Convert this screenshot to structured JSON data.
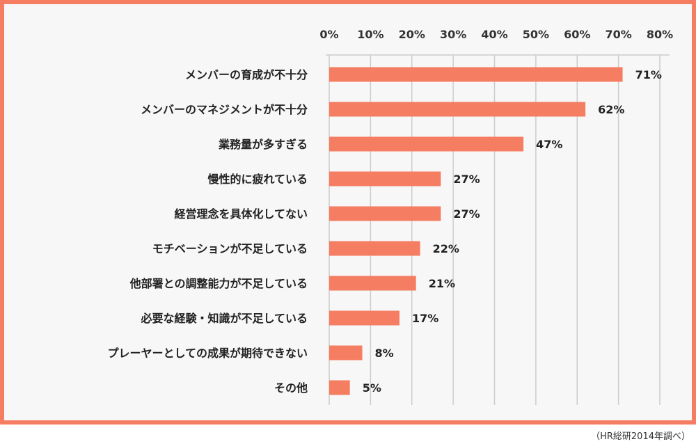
{
  "footnote": "（HR総研2014年調べ）",
  "colors": {
    "bar": "#f57d62",
    "frame": "#f57d62",
    "background": "#f7f7f7",
    "grid": "#cccccc"
  },
  "chart_data": {
    "type": "bar",
    "orientation": "horizontal",
    "grid": true,
    "xlim": [
      0,
      80
    ],
    "xticks": [
      0,
      10,
      20,
      30,
      40,
      50,
      60,
      70,
      80
    ],
    "xtick_labels": [
      "0%",
      "10%",
      "20%",
      "30%",
      "40%",
      "50%",
      "60%",
      "70%",
      "80%"
    ],
    "categories": [
      "メンバーの育成が不十分",
      "メンバーのマネジメントが不十分",
      "業務量が多すぎる",
      "慢性的に疲れている",
      "経営理念を具体化してない",
      "モチベーションが不足している",
      "他部署との調整能力が不足している",
      "必要な経験・知識が不足している",
      "プレーヤーとしての成果が期待できない",
      "その他"
    ],
    "values": [
      71,
      62,
      47,
      27,
      27,
      22,
      21,
      17,
      8,
      5
    ],
    "value_labels": [
      "71%",
      "62%",
      "47%",
      "27%",
      "27%",
      "22%",
      "21%",
      "17%",
      "8%",
      "5%"
    ]
  }
}
